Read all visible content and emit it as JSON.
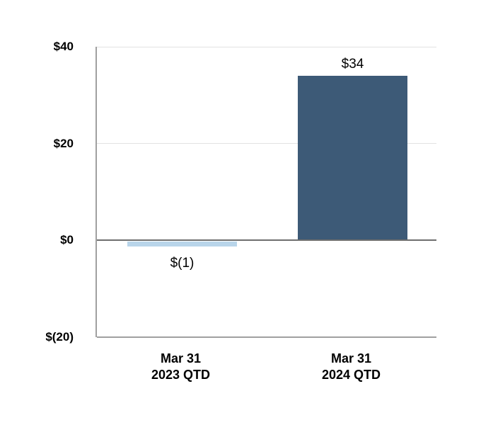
{
  "chart_data": {
    "type": "bar",
    "title": "",
    "xlabel": "",
    "ylabel": "",
    "categories": [
      "Mar 31\n2023 QTD",
      "Mar 31\n2024 QTD"
    ],
    "values": [
      -1,
      34
    ],
    "data_labels": [
      "$(1)",
      "$34"
    ],
    "bar_colors": [
      "#b9d5ea",
      "#3d5a77"
    ],
    "y_ticks": [
      {
        "value": 40,
        "label": "$40"
      },
      {
        "value": 20,
        "label": "$20"
      },
      {
        "value": 0,
        "label": "$0"
      },
      {
        "value": -20,
        "label": "$(20)"
      }
    ],
    "ylim": [
      -20,
      40
    ],
    "grid": true,
    "legend_position": "none",
    "colors": {
      "background": "#ffffff",
      "gridline": "#e2e2e2",
      "zero_line": "#6e6e6e",
      "axis_line": "#a0a0a0",
      "text": "#000000"
    }
  }
}
